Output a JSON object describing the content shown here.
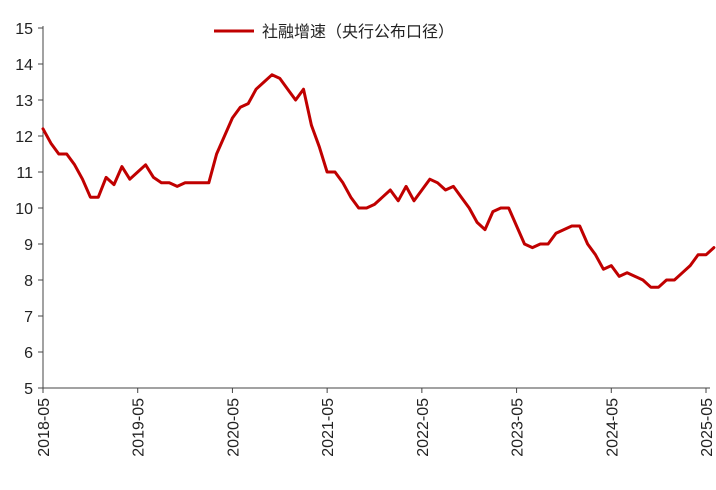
{
  "chart_data": {
    "type": "line",
    "title": "",
    "xlabel": "",
    "ylabel": "",
    "ylim": [
      5,
      15
    ],
    "y_ticks": [
      "5",
      "6",
      "7",
      "8",
      "9",
      "10",
      "11",
      "12",
      "13",
      "14",
      "15"
    ],
    "x_tick_labels": [
      "2018-05",
      "2019-05",
      "2020-05",
      "2021-05",
      "2022-05",
      "2023-05",
      "2024-05",
      "2025-05"
    ],
    "x_start": "2018-05",
    "x_end": "2025-05",
    "grid": false,
    "legend_position": "top-center",
    "series": [
      {
        "name": "社融增速（央行公布口径）",
        "color": "#c00000",
        "x": [
          "2018-05",
          "2018-06",
          "2018-07",
          "2018-08",
          "2018-09",
          "2018-10",
          "2018-11",
          "2018-12",
          "2019-01",
          "2019-02",
          "2019-03",
          "2019-04",
          "2019-05",
          "2019-06",
          "2019-07",
          "2019-08",
          "2019-09",
          "2019-10",
          "2019-11",
          "2019-12",
          "2020-01",
          "2020-02",
          "2020-03",
          "2020-04",
          "2020-05",
          "2020-06",
          "2020-07",
          "2020-08",
          "2020-09",
          "2020-10",
          "2020-11",
          "2020-12",
          "2021-01",
          "2021-02",
          "2021-03",
          "2021-04",
          "2021-05",
          "2021-06",
          "2021-07",
          "2021-08",
          "2021-09",
          "2021-10",
          "2021-11",
          "2021-12",
          "2022-01",
          "2022-02",
          "2022-03",
          "2022-04",
          "2022-05",
          "2022-06",
          "2022-07",
          "2022-08",
          "2022-09",
          "2022-10",
          "2022-11",
          "2022-12",
          "2023-01",
          "2023-02",
          "2023-03",
          "2023-04",
          "2023-05",
          "2023-06",
          "2023-07",
          "2023-08",
          "2023-09",
          "2023-10",
          "2023-11",
          "2023-12",
          "2024-01",
          "2024-02",
          "2024-03",
          "2024-04",
          "2024-05",
          "2024-06",
          "2024-07",
          "2024-08",
          "2024-09",
          "2024-10",
          "2024-11",
          "2024-12",
          "2025-01",
          "2025-02",
          "2025-03",
          "2025-04",
          "2025-05"
        ],
        "values": [
          12.2,
          11.8,
          11.5,
          11.5,
          11.2,
          10.8,
          10.3,
          10.3,
          10.85,
          10.65,
          11.15,
          10.8,
          11.0,
          11.2,
          10.85,
          10.7,
          10.7,
          10.6,
          10.7,
          10.7,
          10.7,
          10.7,
          11.5,
          12.0,
          12.5,
          12.8,
          12.9,
          13.3,
          13.5,
          13.7,
          13.6,
          13.3,
          13.0,
          13.3,
          12.3,
          11.7,
          11.0,
          11.0,
          10.7,
          10.3,
          10.0,
          10.0,
          10.1,
          10.3,
          10.5,
          10.2,
          10.6,
          10.2,
          10.5,
          10.8,
          10.7,
          10.5,
          10.6,
          10.3,
          10.0,
          9.6,
          9.4,
          9.9,
          10.0,
          10.0,
          9.5,
          9.0,
          8.9,
          9.0,
          9.0,
          9.3,
          9.4,
          9.5,
          9.5,
          9.0,
          8.7,
          8.3,
          8.4,
          8.1,
          8.2,
          8.1,
          8.0,
          7.8,
          7.8,
          8.0,
          8.0,
          8.2,
          8.4,
          8.7,
          8.7
        ],
        "extra_point": {
          "x": "2025-06",
          "value": 8.9
        }
      }
    ]
  }
}
